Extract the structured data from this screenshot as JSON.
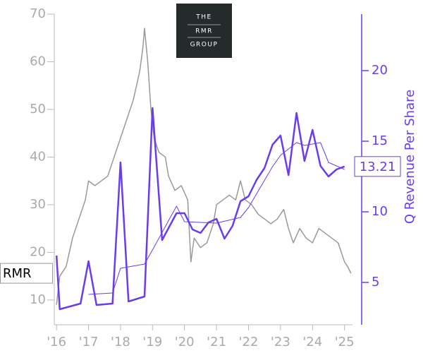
{
  "chart_data": {
    "type": "line",
    "logo": [
      "THE",
      "RMR",
      "GROUP"
    ],
    "y2label": "Q Revenue Per Share",
    "xlim": [
      2015.93,
      2025.25
    ],
    "xticks": [
      {
        "value": 2016,
        "label": "'16"
      },
      {
        "value": 2017,
        "label": "'17"
      },
      {
        "value": 2018,
        "label": "'18"
      },
      {
        "value": 2019,
        "label": "'19"
      },
      {
        "value": 2020,
        "label": "'20"
      },
      {
        "value": 2021,
        "label": "'21"
      },
      {
        "value": 2022,
        "label": "'22"
      },
      {
        "value": 2023,
        "label": "'23"
      },
      {
        "value": 2024,
        "label": "'24"
      },
      {
        "value": 2025,
        "label": "'25"
      }
    ],
    "ylim": [
      4.8,
      70
    ],
    "yticks": [
      10,
      20,
      30,
      40,
      50,
      60,
      70
    ],
    "y2lim": [
      2,
      24
    ],
    "y2ticks": [
      5,
      10,
      15,
      20
    ],
    "series": [
      {
        "color": "#999999",
        "width": 1.5,
        "end_label": "RMR",
        "x": [
          2016.0,
          2016.1,
          2016.3,
          2016.5,
          2016.7,
          2016.9,
          2017.0,
          2017.2,
          2017.4,
          2017.6,
          2017.8,
          2018.0,
          2018.2,
          2018.4,
          2018.6,
          2018.7,
          2018.75,
          2018.85,
          2018.95,
          2019.05,
          2019.2,
          2019.4,
          2019.5,
          2019.7,
          2019.9,
          2020.1,
          2020.2,
          2020.3,
          2020.5,
          2020.7,
          2020.9,
          2021.0,
          2021.2,
          2021.4,
          2021.6,
          2021.75,
          2021.9,
          2022.1,
          2022.3,
          2022.5,
          2022.7,
          2022.9,
          2023.1,
          2023.25,
          2023.4,
          2023.6,
          2023.8,
          2024.0,
          2024.2,
          2024.4,
          2024.6,
          2024.8,
          2024.9,
          2025.0,
          2025.1,
          2025.2
        ],
        "values": [
          9,
          15,
          17,
          23,
          27,
          31,
          35,
          34,
          35,
          36,
          40,
          44,
          48,
          52,
          58,
          63,
          67,
          60,
          50,
          44,
          41,
          40,
          36,
          33,
          34,
          31,
          18,
          23,
          21,
          22,
          26,
          30,
          31,
          32,
          31,
          35,
          31,
          30,
          28,
          27,
          26,
          27,
          29,
          25,
          22,
          25,
          23,
          22,
          25,
          24,
          23,
          22,
          20,
          18,
          17,
          15.6
        ]
      },
      {
        "color": "#6a3cf0",
        "width": 2.5,
        "axis": "y2",
        "end_label": "13.21",
        "x": [
          2016.0,
          2016.1,
          2016.75,
          2017.0,
          2017.25,
          2017.75,
          2018.0,
          2018.25,
          2018.75,
          2019.0,
          2019.3,
          2019.75,
          2020.0,
          2020.25,
          2020.5,
          2020.75,
          2021.0,
          2021.25,
          2021.5,
          2021.75,
          2022.0,
          2022.25,
          2022.5,
          2022.75,
          2023.0,
          2023.25,
          2023.5,
          2023.75,
          2024.0,
          2024.25,
          2024.5,
          2024.75,
          2025.0
        ],
        "values": [
          6.9,
          3.1,
          3.5,
          6.5,
          3.4,
          3.5,
          13.5,
          3.65,
          4.0,
          17.35,
          8.0,
          9.9,
          9.9,
          8.75,
          8.5,
          9.25,
          9.5,
          8.1,
          9.0,
          10.75,
          11.1,
          12.25,
          13.1,
          14.75,
          15.4,
          12.6,
          17.0,
          13.6,
          15.8,
          13.25,
          12.5,
          13.0,
          13.21
        ]
      },
      {
        "color": "#6a3cf0",
        "width": 1,
        "axis": "y2",
        "x": [
          2017.0,
          2017.75,
          2018.0,
          2018.75,
          2019.0,
          2019.75,
          2020.0,
          2021.0,
          2021.75,
          2022.0,
          2022.75,
          2023.0,
          2023.5,
          2023.75,
          2024.25,
          2024.5,
          2025.0
        ],
        "values": [
          4.15,
          4.25,
          6.0,
          6.3,
          7.3,
          10.4,
          9.3,
          9.2,
          9.6,
          10.3,
          13.2,
          14.0,
          14.9,
          14.7,
          14.9,
          13.5,
          13.0
        ]
      }
    ]
  }
}
